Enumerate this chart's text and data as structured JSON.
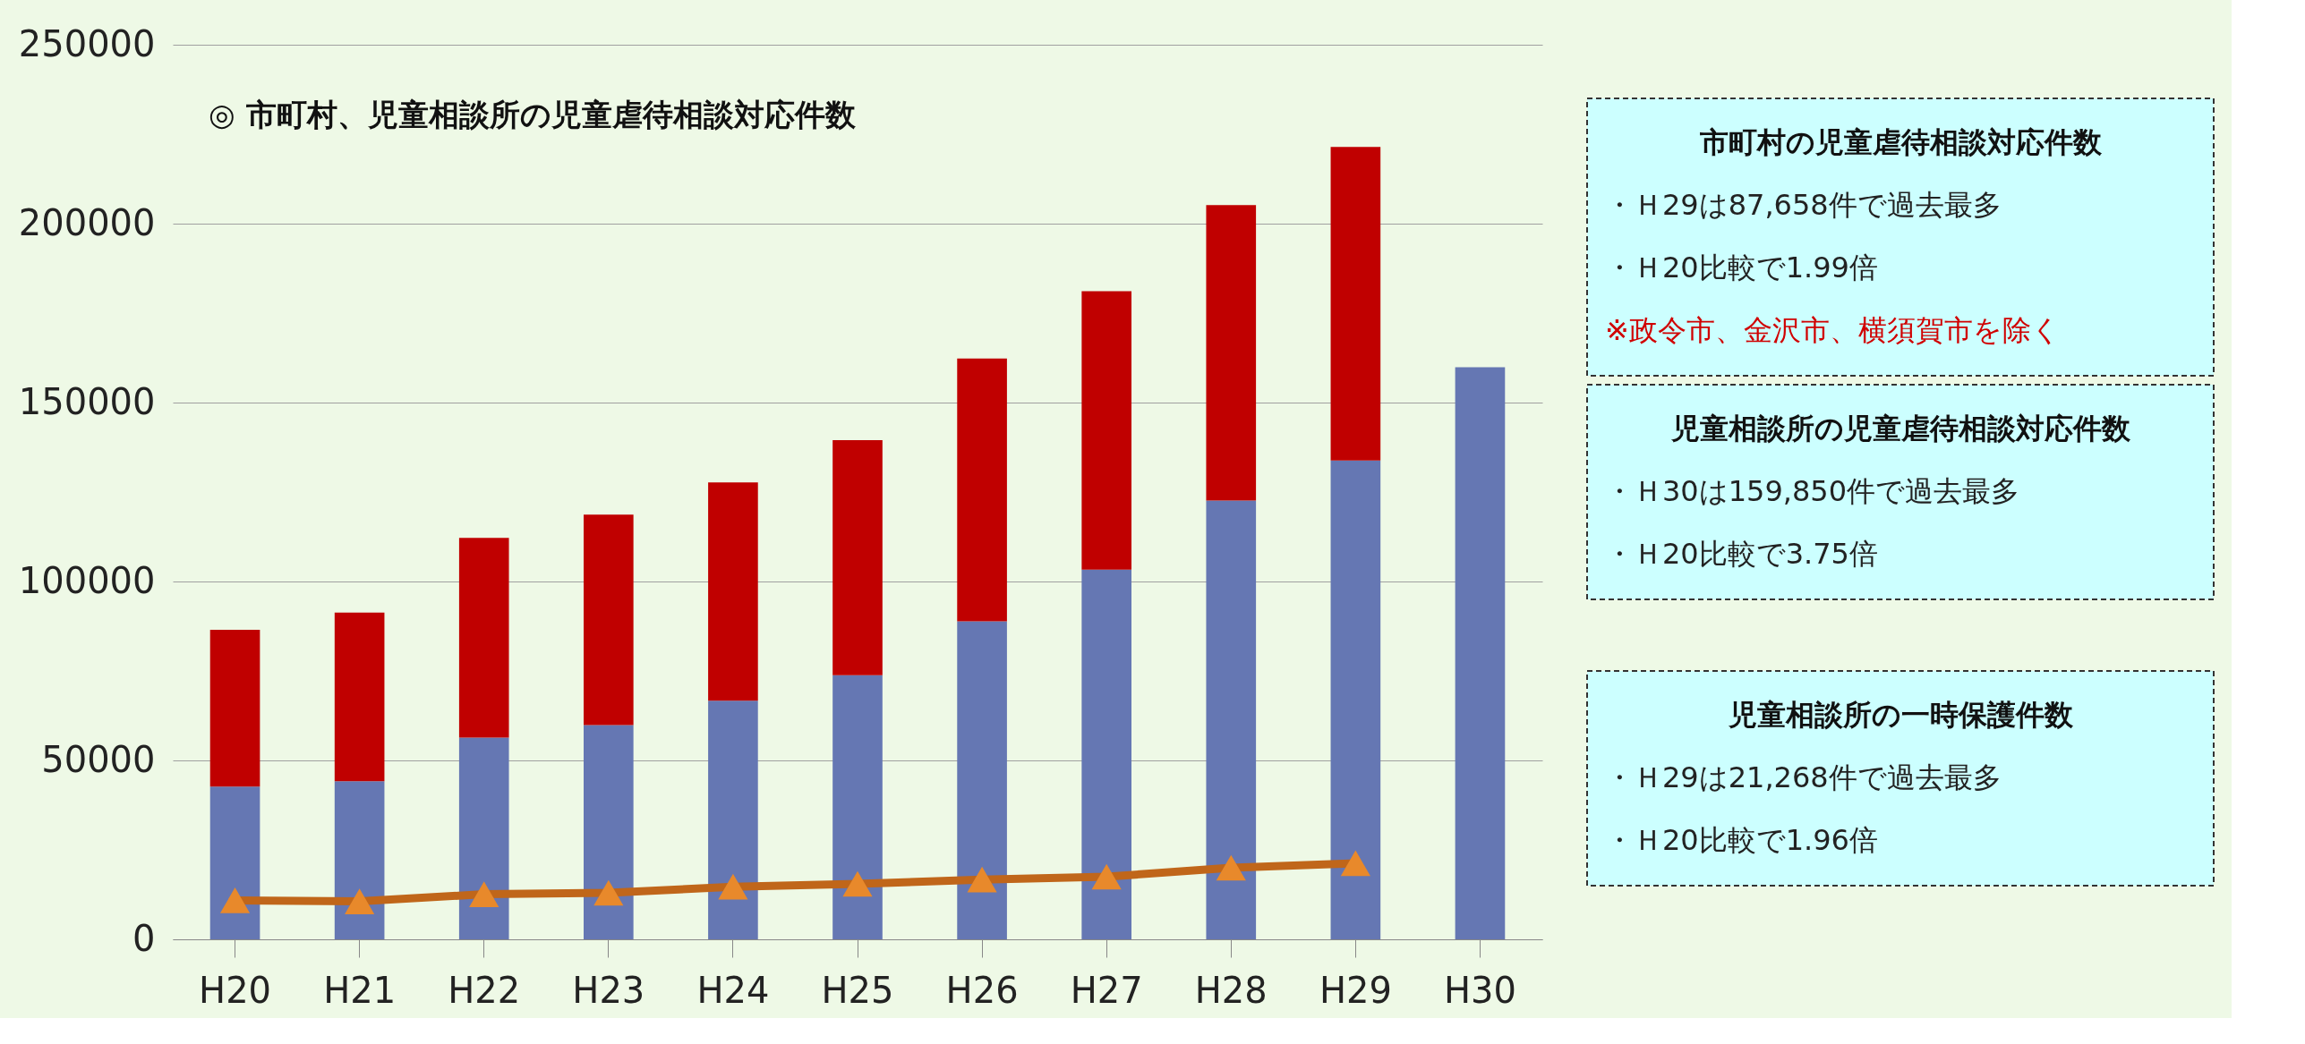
{
  "chart_data": {
    "type": "bar",
    "stacked": true,
    "title": "◎ 市町村、児童相談所の児童虐待相談対応件数",
    "categories": [
      "H20",
      "H21",
      "H22",
      "H23",
      "H24",
      "H25",
      "H26",
      "H27",
      "H28",
      "H29",
      "H30"
    ],
    "series": [
      {
        "color": "#6577b3",
        "values": [
          42700,
          44200,
          56400,
          59900,
          66700,
          73800,
          88900,
          103300,
          122600,
          133800,
          159850
        ]
      },
      {
        "color": "#c00000",
        "values": [
          43800,
          47100,
          55800,
          58800,
          61000,
          65700,
          73400,
          77800,
          82600,
          87658,
          null
        ]
      },
      {
        "type": "line",
        "color": "#c0661a",
        "marker": "triangle",
        "values": [
          10900,
          10600,
          12600,
          13000,
          14700,
          15500,
          16700,
          17500,
          20000,
          21268,
          null
        ]
      }
    ],
    "ylim": [
      0,
      250000
    ],
    "yticks": [
      0,
      50000,
      100000,
      150000,
      200000,
      250000
    ],
    "grid": "y",
    "annotations": [
      "市町村の児童虐待相談対応件数",
      "・Ｈ29は87,658件で過去最多",
      "・Ｈ20比較で1.99倍",
      "※政令市、金沢市、横須賀市を除く",
      "児童相談所の児童虐待相談対応件数",
      "・Ｈ30は159,850件で過去最多",
      "・Ｈ20比較で3.75倍",
      "児童相談所の一時保護件数",
      "・Ｈ29は21,268件で過去最多",
      "・Ｈ20比較で1.96倍"
    ]
  }
}
